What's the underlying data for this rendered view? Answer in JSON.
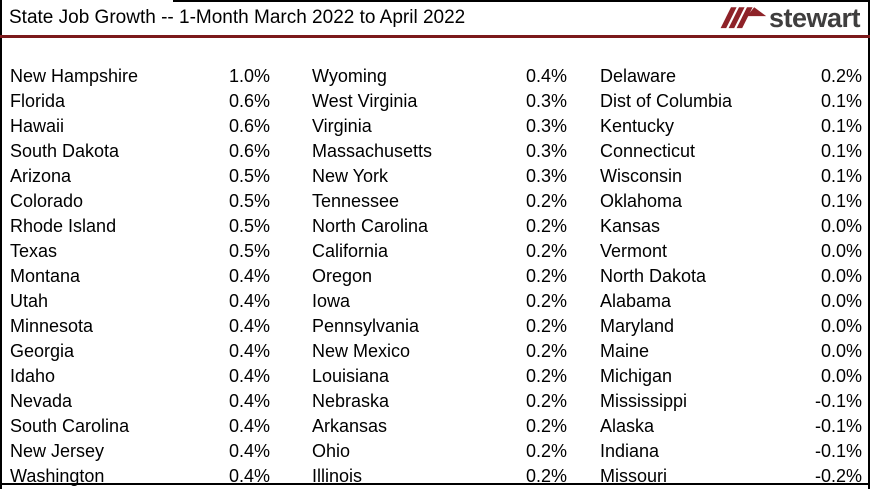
{
  "header": {
    "title": "State Job Growth -- 1-Month March 2022 to April 2022",
    "logo_text": "stewart"
  },
  "colors": {
    "rule_red": "#7b191b",
    "logo_red": "#8e2228",
    "logo_gray": "#3f3e3e",
    "border_black": "#000000",
    "background": "#ffffff",
    "text": "#000000"
  },
  "chart_data": {
    "type": "table",
    "title": "State Job Growth -- 1-Month March 2022 to April 2022",
    "unit": "%",
    "columns": [
      {
        "name": "column-1",
        "rows": [
          {
            "state": "New Hampshire",
            "value": "1.0%"
          },
          {
            "state": "Florida",
            "value": "0.6%"
          },
          {
            "state": "Hawaii",
            "value": "0.6%"
          },
          {
            "state": "South Dakota",
            "value": "0.6%"
          },
          {
            "state": "Arizona",
            "value": "0.5%"
          },
          {
            "state": "Colorado",
            "value": "0.5%"
          },
          {
            "state": "Rhode Island",
            "value": "0.5%"
          },
          {
            "state": "Texas",
            "value": "0.5%"
          },
          {
            "state": "Montana",
            "value": "0.4%"
          },
          {
            "state": "Utah",
            "value": "0.4%"
          },
          {
            "state": "Minnesota",
            "value": "0.4%"
          },
          {
            "state": "Georgia",
            "value": "0.4%"
          },
          {
            "state": "Idaho",
            "value": "0.4%"
          },
          {
            "state": "Nevada",
            "value": "0.4%"
          },
          {
            "state": "South Carolina",
            "value": "0.4%"
          },
          {
            "state": "New Jersey",
            "value": "0.4%"
          },
          {
            "state": "Washington",
            "value": "0.4%"
          }
        ]
      },
      {
        "name": "column-2",
        "rows": [
          {
            "state": "Wyoming",
            "value": "0.4%"
          },
          {
            "state": "West Virginia",
            "value": "0.3%"
          },
          {
            "state": "Virginia",
            "value": "0.3%"
          },
          {
            "state": "Massachusetts",
            "value": "0.3%"
          },
          {
            "state": "New York",
            "value": "0.3%"
          },
          {
            "state": "Tennessee",
            "value": "0.2%"
          },
          {
            "state": "North Carolina",
            "value": "0.2%"
          },
          {
            "state": "California",
            "value": "0.2%"
          },
          {
            "state": "Oregon",
            "value": "0.2%"
          },
          {
            "state": "Iowa",
            "value": "0.2%"
          },
          {
            "state": "Pennsylvania",
            "value": "0.2%"
          },
          {
            "state": "New Mexico",
            "value": "0.2%"
          },
          {
            "state": "Louisiana",
            "value": "0.2%"
          },
          {
            "state": "Nebraska",
            "value": "0.2%"
          },
          {
            "state": "Arkansas",
            "value": "0.2%"
          },
          {
            "state": "Ohio",
            "value": "0.2%"
          },
          {
            "state": "Illinois",
            "value": "0.2%"
          }
        ]
      },
      {
        "name": "column-3",
        "rows": [
          {
            "state": "Delaware",
            "value": "0.2%"
          },
          {
            "state": "Dist of Columbia",
            "value": "0.1%"
          },
          {
            "state": "Kentucky",
            "value": "0.1%"
          },
          {
            "state": "Connecticut",
            "value": "0.1%"
          },
          {
            "state": "Wisconsin",
            "value": "0.1%"
          },
          {
            "state": "Oklahoma",
            "value": "0.1%"
          },
          {
            "state": "Kansas",
            "value": "0.0%"
          },
          {
            "state": "Vermont",
            "value": "0.0%"
          },
          {
            "state": "North Dakota",
            "value": "0.0%"
          },
          {
            "state": "Alabama",
            "value": "0.0%"
          },
          {
            "state": "Maryland",
            "value": "0.0%"
          },
          {
            "state": "Maine",
            "value": "0.0%"
          },
          {
            "state": "Michigan",
            "value": "0.0%"
          },
          {
            "state": "Mississippi",
            "value": "-0.1%"
          },
          {
            "state": "Alaska",
            "value": "-0.1%"
          },
          {
            "state": "Indiana",
            "value": "-0.1%"
          },
          {
            "state": "Missouri",
            "value": "-0.2%"
          }
        ]
      }
    ]
  }
}
